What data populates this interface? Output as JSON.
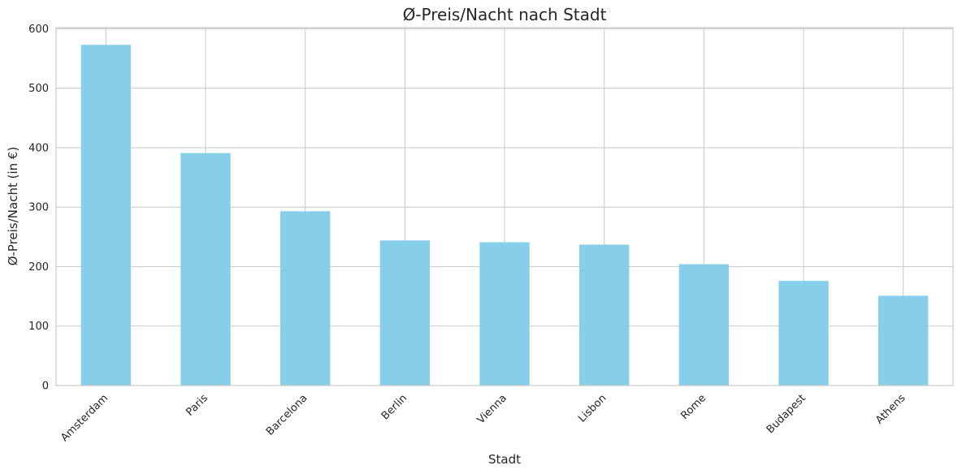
{
  "chart_data": {
    "type": "bar",
    "title": "Ø-Preis/Nacht nach Stadt",
    "xlabel": "Stadt",
    "ylabel": "Ø-Preis/Nacht (in €)",
    "categories": [
      "Amsterdam",
      "Paris",
      "Barcelona",
      "Berlin",
      "Vienna",
      "Lisbon",
      "Rome",
      "Budapest",
      "Athens"
    ],
    "values": [
      573,
      391,
      293,
      244,
      241,
      237,
      204,
      176,
      151
    ],
    "ylim": [
      0,
      602
    ],
    "yticks": [
      0,
      100,
      200,
      300,
      400,
      500,
      600
    ],
    "grid": true,
    "legend": "none",
    "bar_color": "#87ceeb",
    "grid_color": "#cccccc"
  }
}
